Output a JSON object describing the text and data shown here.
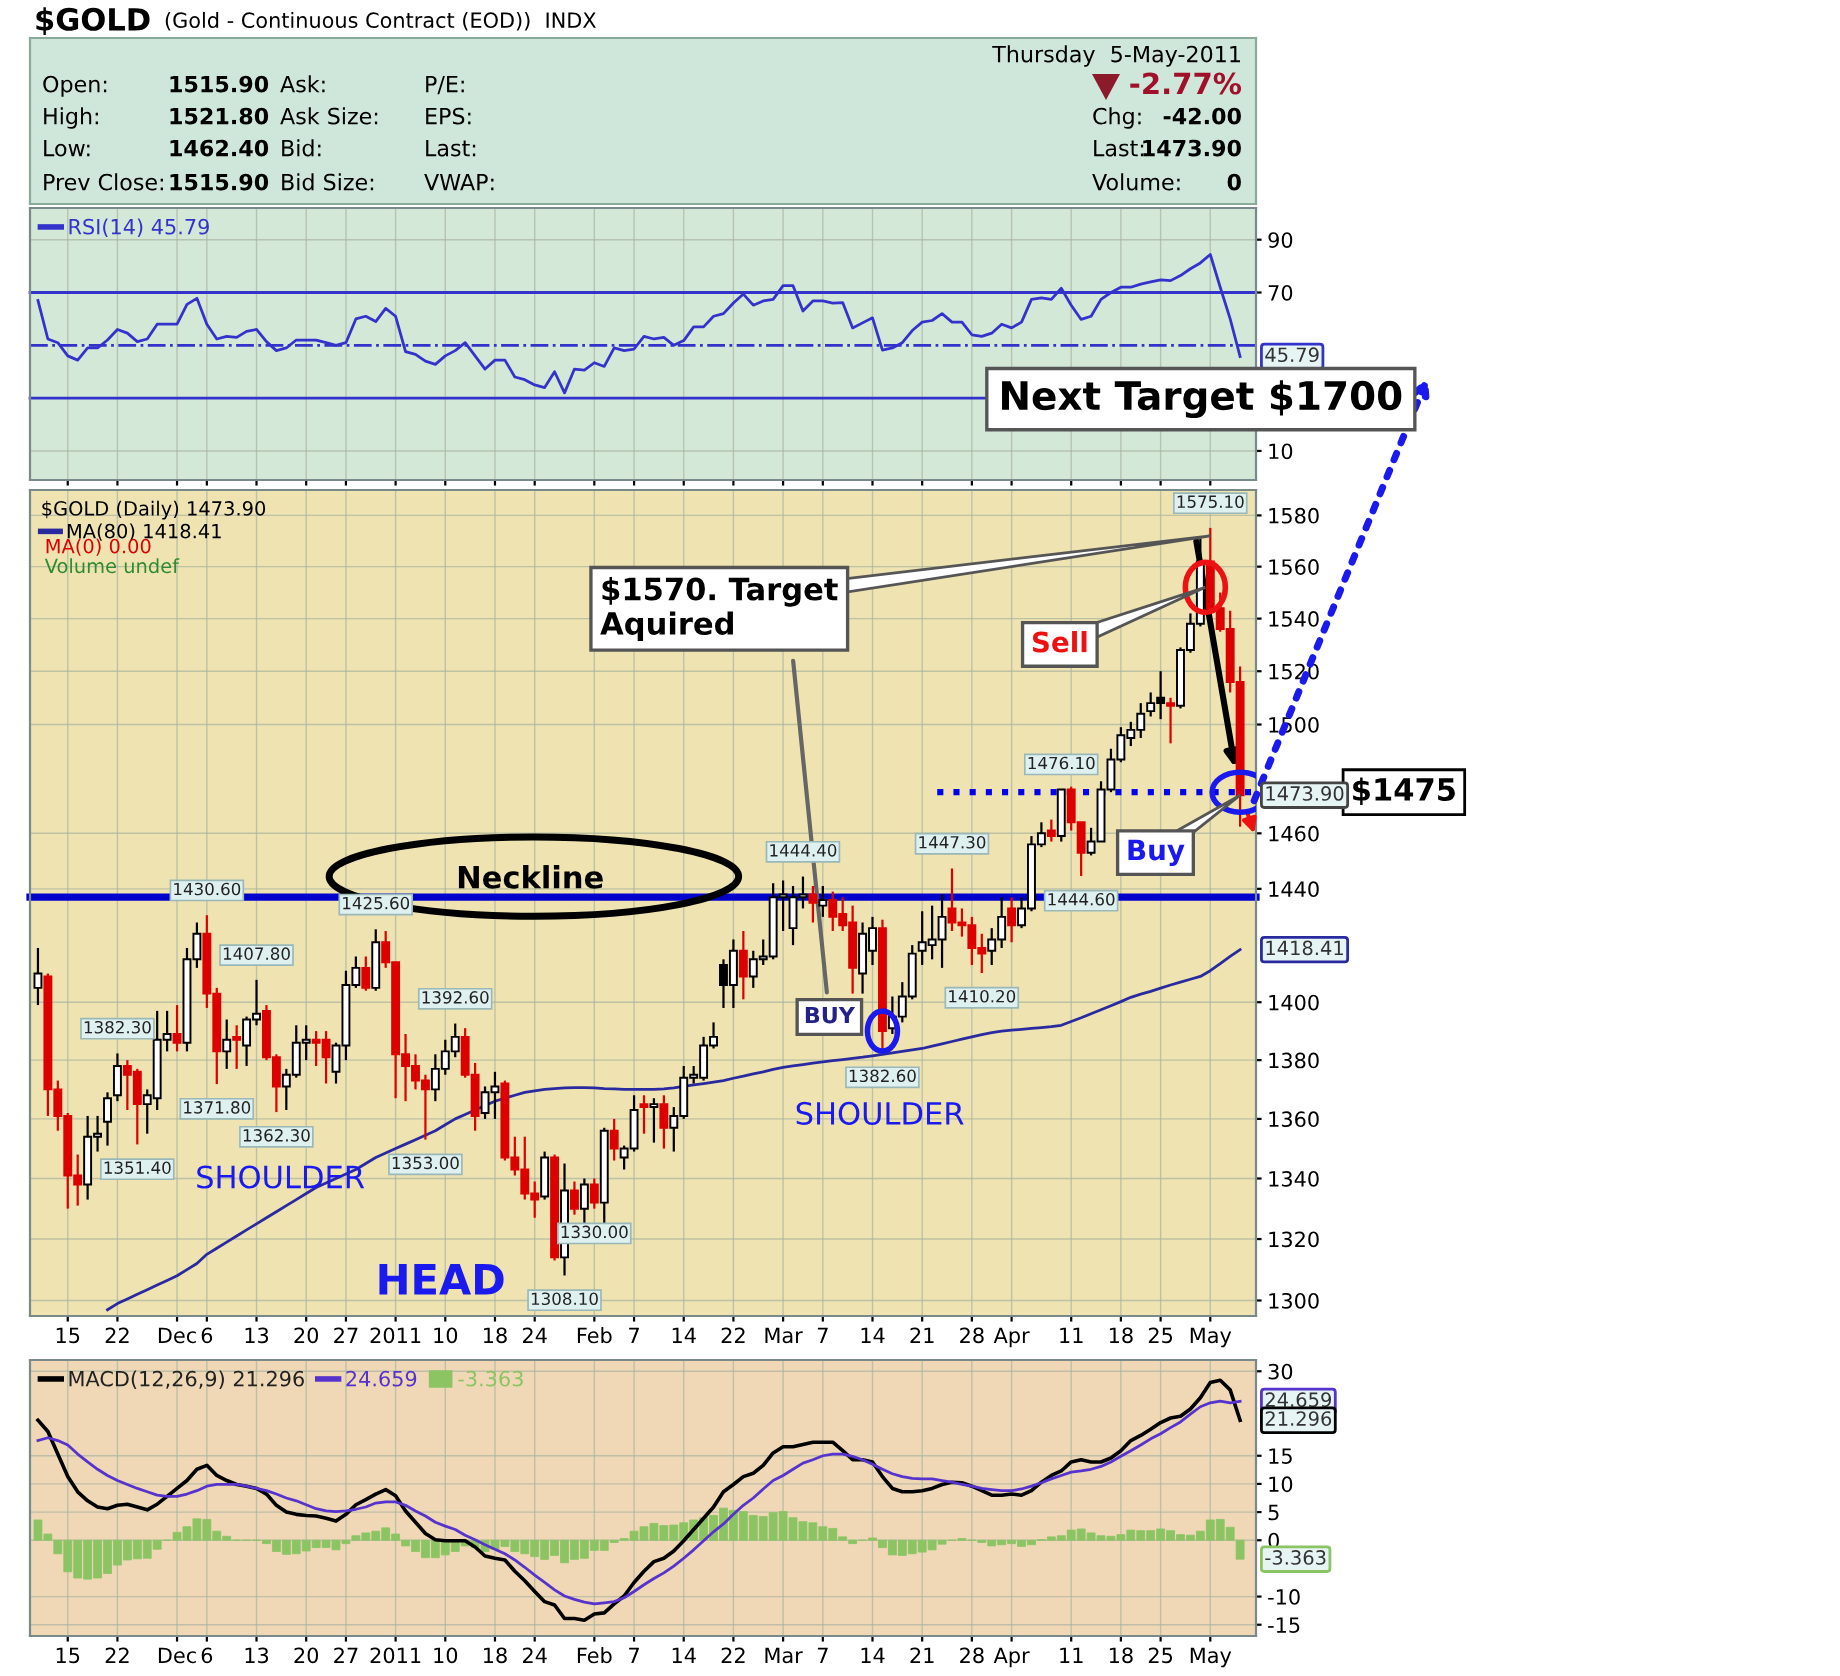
{
  "chart_data": [
    {
      "type": "other",
      "title": "$GOLD",
      "subtitle": "(Gold - Continuous Contract (EOD))  INDX",
      "annotations": [
        "Open:",
        "1515.90",
        "High:",
        "1521.80",
        "Low:",
        "1462.40",
        "Prev Close:",
        "1515.90",
        "Ask:",
        "Ask Size:",
        "Bid:",
        "Bid Size:",
        "P/E:",
        "EPS:",
        "Last:",
        "VWAP:",
        "Thursday  5-May-2011",
        "-2.77%",
        "Chg:",
        "-42.00",
        "Last:",
        "1473.90",
        "Volume:",
        "0"
      ]
    },
    {
      "type": "line",
      "categories": [
        null,
        null,
        null,
        null,
        null,
        null,
        null,
        null,
        null,
        null,
        null,
        null,
        null,
        null,
        null,
        null,
        null,
        null,
        null,
        null,
        null,
        null,
        null,
        null,
        null,
        null,
        null,
        null,
        null,
        null,
        null,
        null,
        null,
        null,
        null,
        null,
        null,
        null,
        null,
        null,
        null,
        null,
        null,
        null,
        null,
        null,
        null,
        null,
        null,
        null,
        null,
        null,
        null,
        null,
        null,
        null,
        null,
        null,
        null,
        null,
        null,
        null,
        null,
        null,
        null,
        null,
        null,
        null,
        null,
        null,
        null,
        null,
        null,
        null,
        null,
        null,
        null,
        null,
        null,
        null,
        null,
        null,
        null,
        null,
        null,
        null,
        null,
        null,
        null,
        null,
        null,
        null,
        null,
        null,
        null,
        null,
        null,
        null,
        null,
        null,
        null,
        null,
        null,
        null,
        null,
        null,
        null,
        null,
        null,
        null,
        null,
        null,
        null,
        null,
        null,
        null,
        null,
        null,
        null,
        null,
        null,
        null
      ],
      "series": [
        {
          "name": "RSI(14) 45.79",
          "color": "#3333cc",
          "values": [
            67,
            52.4,
            51,
            46,
            44.4,
            49,
            49,
            52,
            56,
            54.6,
            51.4,
            52.4,
            58,
            58,
            58,
            65.5,
            67.8,
            58,
            52.4,
            53.4,
            53,
            55.3,
            56,
            51.4,
            48,
            49,
            52,
            52,
            52,
            51,
            50,
            51,
            60,
            61,
            59,
            64,
            61,
            47.6,
            46.6,
            44,
            42.8,
            46,
            48,
            51,
            46,
            41,
            44.4,
            44.4,
            38,
            37,
            35,
            34,
            40,
            32,
            41,
            40.6,
            43.4,
            42,
            49,
            48,
            48.6,
            53.4,
            52.4,
            53,
            50,
            51.8,
            57,
            57,
            61,
            62,
            66,
            69.4,
            65.2,
            66.8,
            67.4,
            72.6,
            72.6,
            63,
            66.8,
            66.8,
            66,
            66.2,
            56.6,
            58.5,
            60.4,
            48.2,
            49,
            51,
            55.6,
            58.8,
            59.4,
            62,
            58.8,
            58.8,
            54,
            53.4,
            54.6,
            58,
            56.6,
            58.8,
            67.4,
            68,
            67.4,
            71.6,
            65.2,
            59.8,
            61,
            67.4,
            70,
            72,
            72,
            73.2,
            74,
            74.8,
            74.5,
            76.4,
            79,
            81.2,
            84.4,
            72,
            60,
            45.79
          ]
        }
      ],
      "ylim": [
        -1,
        102
      ],
      "yticks": [
        10,
        70,
        90
      ],
      "tick_labels": "y",
      "grid": true,
      "legend": "top left",
      "ref_lines": [
        {
          "axis": "y",
          "value": 70,
          "color": "#3333cc",
          "line_style": "solid"
        },
        {
          "axis": "y",
          "value": 50,
          "color": "#3333cc",
          "line_style": "dashdot"
        },
        {
          "axis": "y",
          "value": 30,
          "color": "#3333cc",
          "line_style": "solid"
        }
      ],
      "annotations": [
        {
          "text": "45.79",
          "y": 45.79
        }
      ]
    },
    {
      "type": "candlestick",
      "categories": [
        null,
        null,
        null,
        "15",
        null,
        null,
        null,
        null,
        "22",
        null,
        null,
        null,
        null,
        null,
        "Dec",
        null,
        null,
        "6",
        null,
        null,
        null,
        null,
        "13",
        null,
        null,
        null,
        null,
        "20",
        null,
        null,
        null,
        "27",
        null,
        null,
        null,
        null,
        "2011",
        null,
        null,
        null,
        null,
        "10",
        null,
        null,
        null,
        null,
        "18",
        null,
        null,
        null,
        "24",
        null,
        null,
        null,
        null,
        null,
        "Feb",
        null,
        null,
        null,
        "7",
        null,
        null,
        null,
        null,
        "14",
        null,
        null,
        null,
        null,
        "22",
        null,
        null,
        null,
        null,
        "Mar",
        null,
        null,
        null,
        "7",
        null,
        null,
        null,
        null,
        "14",
        null,
        null,
        null,
        null,
        "21",
        null,
        null,
        null,
        null,
        "28",
        null,
        null,
        null,
        "Apr",
        null,
        null,
        null,
        null,
        null,
        "11",
        null,
        null,
        null,
        null,
        "18",
        null,
        null,
        null,
        "25",
        null,
        null,
        null,
        null,
        "May",
        null,
        null,
        null
      ],
      "ohlc": [
        [
          1405,
          1419,
          1399,
          1410
        ],
        [
          1409,
          1410,
          1361,
          1370
        ],
        [
          1370,
          1373,
          1356,
          1361
        ],
        [
          1361,
          1362,
          1330,
          1341
        ],
        [
          1341,
          1348,
          1331,
          1338
        ],
        [
          1338,
          1361,
          1333,
          1354
        ],
        [
          1354,
          1361,
          1349,
          1355
        ],
        [
          1359,
          1369,
          1351,
          1367
        ],
        [
          1368,
          1382.3,
          1366,
          1378
        ],
        [
          1378,
          1380,
          1363,
          1375
        ],
        [
          1376,
          1377,
          1351.4,
          1365
        ],
        [
          1365,
          1370,
          1355,
          1368
        ],
        [
          1367,
          1397,
          1363,
          1387
        ],
        [
          1387,
          1397,
          1383,
          1389
        ],
        [
          1389,
          1399,
          1383,
          1386
        ],
        [
          1386,
          1419,
          1383,
          1415
        ],
        [
          1415,
          1428,
          1412,
          1424
        ],
        [
          1424,
          1430.6,
          1398,
          1403
        ],
        [
          1403,
          1405,
          1371.8,
          1383
        ],
        [
          1383,
          1394,
          1377,
          1387
        ],
        [
          1388,
          1392,
          1377,
          1387
        ],
        [
          1385,
          1395,
          1378,
          1394
        ],
        [
          1394,
          1407.8,
          1392,
          1396
        ],
        [
          1397,
          1399,
          1380,
          1381
        ],
        [
          1381,
          1382,
          1362.3,
          1371
        ],
        [
          1371,
          1377,
          1363,
          1375
        ],
        [
          1375,
          1392,
          1374,
          1386
        ],
        [
          1386,
          1392,
          1380,
          1387
        ],
        [
          1387,
          1390,
          1378,
          1386
        ],
        [
          1387,
          1390,
          1372,
          1381
        ],
        [
          1376,
          1386,
          1372,
          1385
        ],
        [
          1385,
          1411,
          1380,
          1406
        ],
        [
          1406,
          1416,
          1405,
          1412
        ],
        [
          1412,
          1416,
          1404,
          1405
        ],
        [
          1405,
          1425.6,
          1404,
          1421
        ],
        [
          1421,
          1425,
          1412,
          1414
        ],
        [
          1414,
          1414,
          1367,
          1382
        ],
        [
          1382,
          1389,
          1366,
          1378
        ],
        [
          1378,
          1382,
          1370,
          1373
        ],
        [
          1373,
          1375,
          1353,
          1370
        ],
        [
          1370,
          1382,
          1366,
          1377
        ],
        [
          1377,
          1387,
          1375,
          1383
        ],
        [
          1383,
          1392.6,
          1381,
          1388
        ],
        [
          1388,
          1391,
          1374,
          1375
        ],
        [
          1375,
          1379,
          1356,
          1361
        ],
        [
          1362,
          1371,
          1360,
          1369
        ],
        [
          1369,
          1376,
          1360,
          1371
        ],
        [
          1372,
          1373,
          1346,
          1347
        ],
        [
          1347,
          1354,
          1341,
          1343
        ],
        [
          1343,
          1354,
          1333,
          1335
        ],
        [
          1335,
          1339,
          1327,
          1333
        ],
        [
          1334,
          1349,
          1333,
          1347
        ],
        [
          1347,
          1348,
          1313,
          1314
        ],
        [
          1314,
          1345,
          1308.1,
          1336
        ],
        [
          1336,
          1339,
          1328,
          1330
        ],
        [
          1330,
          1340,
          1324,
          1338
        ],
        [
          1338,
          1340,
          1330,
          1332
        ],
        [
          1332,
          1357,
          1324,
          1356
        ],
        [
          1356,
          1360,
          1346,
          1350
        ],
        [
          1347,
          1351,
          1343,
          1350
        ],
        [
          1350,
          1368,
          1349,
          1363
        ],
        [
          1365,
          1368,
          1355,
          1364
        ],
        [
          1364,
          1367,
          1352,
          1365
        ],
        [
          1365,
          1368,
          1350,
          1357
        ],
        [
          1357,
          1364,
          1349,
          1361
        ],
        [
          1361,
          1378,
          1360,
          1374
        ],
        [
          1374,
          1378,
          1372,
          1375
        ],
        [
          1374,
          1388,
          1373,
          1385
        ],
        [
          1385,
          1393,
          1384,
          1388
        ],
        [
          1413,
          1415,
          1398,
          1406
        ],
        [
          1406,
          1422,
          1398,
          1418
        ],
        [
          1418,
          1425,
          1401,
          1409
        ],
        [
          1409,
          1418,
          1405,
          1415
        ],
        [
          1415,
          1422,
          1413,
          1416
        ],
        [
          1416,
          1442,
          1415,
          1437
        ],
        [
          1437,
          1443,
          1425,
          1438
        ],
        [
          1426,
          1441,
          1420,
          1437
        ],
        [
          1437,
          1444.4,
          1433,
          1438
        ],
        [
          1438,
          1441,
          1428,
          1435
        ],
        [
          1434,
          1441,
          1430,
          1436
        ],
        [
          1436,
          1439,
          1425,
          1430
        ],
        [
          1431,
          1437,
          1425,
          1427
        ],
        [
          1428,
          1434,
          1403,
          1412
        ],
        [
          1410,
          1428,
          1403,
          1424
        ],
        [
          1418,
          1430,
          1413,
          1426
        ],
        [
          1426,
          1429,
          1382.6,
          1390
        ],
        [
          1391,
          1402,
          1389,
          1395
        ],
        [
          1395,
          1407,
          1393,
          1402
        ],
        [
          1402,
          1420,
          1401,
          1417
        ],
        [
          1418,
          1432,
          1413,
          1421
        ],
        [
          1420,
          1434,
          1415,
          1422
        ],
        [
          1422,
          1438,
          1412,
          1430
        ],
        [
          1433,
          1447.3,
          1425,
          1428
        ],
        [
          1428,
          1433,
          1423,
          1427
        ],
        [
          1427,
          1430,
          1413,
          1419
        ],
        [
          1419,
          1424,
          1410.2,
          1417
        ],
        [
          1418,
          1426,
          1413,
          1422
        ],
        [
          1422,
          1437,
          1419,
          1430
        ],
        [
          1433,
          1437,
          1421,
          1427
        ],
        [
          1427,
          1437,
          1426,
          1433
        ],
        [
          1433,
          1459,
          1432,
          1456
        ],
        [
          1456,
          1464,
          1455,
          1460
        ],
        [
          1461,
          1465,
          1457,
          1459
        ],
        [
          1459,
          1476.1,
          1457,
          1476
        ],
        [
          1476,
          1477,
          1461,
          1464
        ],
        [
          1464,
          1464,
          1444.6,
          1453
        ],
        [
          1453,
          1462,
          1452,
          1457
        ],
        [
          1457,
          1479,
          1457,
          1476
        ],
        [
          1476,
          1491,
          1475,
          1487
        ],
        [
          1487,
          1499,
          1486,
          1496
        ],
        [
          1495,
          1501,
          1492,
          1498
        ],
        [
          1498,
          1508,
          1495,
          1504
        ],
        [
          1505,
          1512,
          1503,
          1508
        ],
        [
          1510,
          1520,
          1502,
          1508
        ],
        [
          1508,
          1510,
          1493,
          1507
        ],
        [
          1507,
          1529,
          1506,
          1528
        ],
        [
          1528,
          1542,
          1527,
          1538
        ],
        [
          1538,
          1571,
          1537,
          1562
        ],
        [
          1562,
          1575.1,
          1541,
          1544
        ],
        [
          1544,
          1550,
          1535,
          1536
        ],
        [
          1536,
          1543,
          1512,
          1515.9
        ],
        [
          1515.9,
          1521.8,
          1462.4,
          1473.9
        ]
      ],
      "colors": [
        "#ffffff",
        "#dd0000",
        "#dd0000",
        "#dd0000",
        "#dd0000",
        "#ffffff",
        "#ffffff",
        "#ffffff",
        "#ffffff",
        "#dd0000",
        "#dd0000",
        "#ffffff",
        "#ffffff",
        "#ffffff",
        "#dd0000",
        "#ffffff",
        "#ffffff",
        "#dd0000",
        "#dd0000",
        "#ffffff",
        "#dd0000",
        "#ffffff",
        "#ffffff",
        "#dd0000",
        "#dd0000",
        "#ffffff",
        "#ffffff",
        "#ffffff",
        "#dd0000",
        "#dd0000",
        "#ffffff",
        "#ffffff",
        "#ffffff",
        "#dd0000",
        "#ffffff",
        "#dd0000",
        "#dd0000",
        "#dd0000",
        "#dd0000",
        "#dd0000",
        "#ffffff",
        "#ffffff",
        "#ffffff",
        "#dd0000",
        "#dd0000",
        "#ffffff",
        "#ffffff",
        "#dd0000",
        "#dd0000",
        "#dd0000",
        "#dd0000",
        "#ffffff",
        "#dd0000",
        "#ffffff",
        "#dd0000",
        "#ffffff",
        "#dd0000",
        "#ffffff",
        "#dd0000",
        "#ffffff",
        "#ffffff",
        "#dd0000",
        "#ffffff",
        "#dd0000",
        "#ffffff",
        "#ffffff",
        "#ffffff",
        "#ffffff",
        "#ffffff",
        "#000000",
        "#ffffff",
        "#dd0000",
        "#ffffff",
        "#ffffff",
        "#ffffff",
        "#ffffff",
        "#ffffff",
        "#ffffff",
        "#dd0000",
        "#ffffff",
        "#dd0000",
        "#dd0000",
        "#dd0000",
        "#ffffff",
        "#ffffff",
        "#dd0000",
        "#ffffff",
        "#ffffff",
        "#ffffff",
        "#ffffff",
        "#ffffff",
        "#ffffff",
        "#dd0000",
        "#dd0000",
        "#dd0000",
        "#dd0000",
        "#ffffff",
        "#ffffff",
        "#dd0000",
        "#ffffff",
        "#ffffff",
        "#ffffff",
        "#dd0000",
        "#ffffff",
        "#dd0000",
        "#dd0000",
        "#ffffff",
        "#ffffff",
        "#ffffff",
        "#ffffff",
        "#ffffff",
        "#ffffff",
        "#ffffff",
        "#000000",
        "#dd0000",
        "#ffffff",
        "#ffffff",
        "#ffffff",
        "#dd0000",
        "#dd0000",
        "#dd0000",
        "#dd0000"
      ],
      "series": [
        {
          "name": "MA(80) 1418.41",
          "type": "line",
          "color": "#2a2aa0",
          "values": [
            null,
            null,
            null,
            null,
            null,
            null,
            null,
            1297,
            1299,
            1300.5,
            1302,
            1303.5,
            1305,
            1306.5,
            1308,
            1310,
            1312,
            1315,
            1317,
            1319,
            1321,
            1323,
            1325,
            1327,
            1329,
            1331,
            1333,
            1335,
            1337,
            1338.5,
            1340,
            1341.5,
            1343,
            1345,
            1347,
            1348.5,
            1350,
            1351.5,
            1353,
            1354.5,
            1356,
            1358,
            1360,
            1361.5,
            1363,
            1364.5,
            1366,
            1367,
            1368,
            1369,
            1369.5,
            1370,
            1370.3,
            1370.5,
            1370.6,
            1370.6,
            1370.5,
            1370.3,
            1370.2,
            1370,
            1370,
            1370,
            1370,
            1370.2,
            1370.5,
            1371,
            1371.5,
            1372,
            1372.5,
            1373,
            1373.8,
            1374.5,
            1375.3,
            1376,
            1376.8,
            1377.5,
            1378,
            1378.5,
            1379,
            1379.4,
            1379.8,
            1380.2,
            1380.6,
            1381,
            1381.5,
            1382,
            1382.5,
            1383,
            1383.5,
            1384,
            1384.8,
            1385.6,
            1386.4,
            1387.2,
            1388,
            1388.8,
            1389.5,
            1390,
            1390.3,
            1390.6,
            1390.9,
            1391.2,
            1391.5,
            1392,
            1393.3,
            1394.6,
            1396,
            1397.4,
            1398.8,
            1400.2,
            1401.7,
            1402.8,
            1403.8,
            1404.9,
            1406,
            1407,
            1408,
            1409,
            1411,
            1413.5,
            1416,
            1418.41
          ]
        }
      ],
      "legend_title": "$GOLD (Daily) 1473.90",
      "legend": "top left",
      "log": "y",
      "ylim": [
        1295,
        1590
      ],
      "yticks": [
        1300,
        1320,
        1340,
        1360,
        1380,
        1400,
        1440,
        1460,
        1500,
        1520,
        1540,
        1560,
        1580
      ],
      "grid": true,
      "ref_lines": [
        {
          "axis": "y",
          "value": 1437,
          "color": "#0000cc",
          "line_style": "solid"
        },
        {
          "axis": "y",
          "value": 1475,
          "label": "$1475",
          "color": "#0000ee",
          "line_style": "dotted"
        }
      ],
      "annotations": [
        "MA(0) 0.00",
        "Volume undef",
        "Neckline",
        "SHOULDER",
        "HEAD",
        "SHOULDER",
        "$1570. Target\nAquired",
        "Sell",
        "Buy",
        "BUY",
        "Next Target $1700",
        "1473.90",
        "1418.41",
        {
          "text": "1330.00",
          "y": 1330
        },
        {
          "text": "1382.30",
          "y": 1382.3
        },
        {
          "text": "1351.40",
          "y": 1351.4
        },
        {
          "text": "1430.60",
          "y": 1430.6
        },
        {
          "text": "1371.80",
          "y": 1371.8
        },
        {
          "text": "1407.80",
          "y": 1407.8
        },
        {
          "text": "1362.30",
          "y": 1362.3
        },
        {
          "text": "1425.60",
          "y": 1425.6
        },
        {
          "text": "1353.00",
          "y": 1353
        },
        {
          "text": "1392.60",
          "y": 1392.6
        },
        {
          "text": "1308.10",
          "y": 1308.1
        },
        {
          "text": "1444.40",
          "y": 1444.4
        },
        {
          "text": "1382.60",
          "y": 1382.6
        },
        {
          "text": "1447.30",
          "y": 1447.3
        },
        {
          "text": "1410.20",
          "y": 1410.2
        },
        {
          "text": "1476.10",
          "y": 1476.1
        },
        {
          "text": "1444.60",
          "y": 1444.6
        },
        {
          "text": "1575.10",
          "y": 1575.1
        }
      ]
    },
    {
      "type": "line",
      "categories": [
        null,
        null,
        null,
        "15",
        null,
        null,
        null,
        null,
        "22",
        null,
        null,
        null,
        null,
        null,
        "Dec",
        null,
        null,
        "6",
        null,
        null,
        null,
        null,
        "13",
        null,
        null,
        null,
        null,
        "20",
        null,
        null,
        null,
        "27",
        null,
        null,
        null,
        null,
        "2011",
        null,
        null,
        null,
        null,
        "10",
        null,
        null,
        null,
        null,
        "18",
        null,
        null,
        null,
        "24",
        null,
        null,
        null,
        null,
        null,
        "Feb",
        null,
        null,
        null,
        "7",
        null,
        null,
        null,
        null,
        "14",
        null,
        null,
        null,
        null,
        "22",
        null,
        null,
        null,
        null,
        "Mar",
        null,
        null,
        null,
        "7",
        null,
        null,
        null,
        null,
        "14",
        null,
        null,
        null,
        null,
        "21",
        null,
        null,
        null,
        null,
        "28",
        null,
        null,
        null,
        "Apr",
        null,
        null,
        null,
        null,
        null,
        "11",
        null,
        null,
        null,
        null,
        "18",
        null,
        null,
        null,
        "25",
        null,
        null,
        null,
        null,
        "May",
        null,
        null,
        null
      ],
      "series": [
        {
          "name": "MACD(12,26,9) 21.296",
          "color": "#000000",
          "values": [
            21.3,
            19.3,
            15.3,
            11.3,
            8.6,
            7,
            5.9,
            5.6,
            6.2,
            6.4,
            5.9,
            5.4,
            6.4,
            7.8,
            9.2,
            10.6,
            12.6,
            13.3,
            11.5,
            10.6,
            9.9,
            9.6,
            9.2,
            8.2,
            6.2,
            5,
            4.6,
            4.4,
            4.3,
            3.9,
            3.4,
            4.6,
            6.3,
            7.2,
            8.2,
            9,
            7.9,
            5.2,
            3.2,
            1.2,
            0.1,
            -0.1,
            -0.1,
            -0.1,
            -1.2,
            -2.8,
            -3.2,
            -3.5,
            -5.5,
            -7.2,
            -9.1,
            -10.9,
            -11.5,
            -13.9,
            -13.9,
            -14.2,
            -13.1,
            -12.9,
            -11.3,
            -9.9,
            -7.5,
            -5.5,
            -3.8,
            -3.2,
            -1.9,
            -0.1,
            1.9,
            3.9,
            5.9,
            8.6,
            9.9,
            11.3,
            11.9,
            13.3,
            15.5,
            16.6,
            16.6,
            17,
            17.4,
            17.4,
            17.4,
            15.9,
            14.3,
            14.3,
            13.9,
            11.3,
            9.2,
            8.6,
            8.6,
            8.8,
            9.2,
            9.9,
            10.3,
            10.2,
            9.6,
            8.8,
            8,
            8,
            8.2,
            8,
            8.8,
            10.3,
            11.5,
            12.3,
            13.9,
            14.3,
            13.9,
            13.9,
            14.6,
            15.9,
            17.7,
            18.6,
            19.7,
            20.9,
            21.7,
            22,
            23.3,
            25.3,
            28,
            28.4,
            26.7,
            21.296
          ]
        },
        {
          "name": "24.659",
          "color": "#5533cc",
          "values": [
            17.7,
            18.2,
            17.7,
            16.9,
            15.3,
            13.9,
            12.6,
            11.5,
            10.6,
            9.9,
            9.2,
            8.6,
            8,
            7.8,
            7.8,
            8.2,
            8.8,
            9.6,
            9.9,
            9.9,
            9.9,
            9.6,
            9.2,
            8.8,
            8.2,
            7.5,
            7,
            6.3,
            5.6,
            5.2,
            5.1,
            5.2,
            5.5,
            5.9,
            6.6,
            6.8,
            6.8,
            6.2,
            5.2,
            4.3,
            3.2,
            2.5,
            1.9,
            0.9,
            0.1,
            -0.8,
            -1.6,
            -2.4,
            -3.5,
            -4.8,
            -6.2,
            -7.5,
            -8.8,
            -9.9,
            -10.5,
            -11,
            -11.3,
            -11.1,
            -10.9,
            -10.2,
            -9.1,
            -7.9,
            -6.8,
            -5.8,
            -4.6,
            -3.2,
            -1.7,
            -0.1,
            1.5,
            2.9,
            4.6,
            6.2,
            7.5,
            9.1,
            10.6,
            11.5,
            12.6,
            13.7,
            14.3,
            15,
            15.3,
            15.3,
            14.9,
            14.3,
            13.5,
            12.6,
            11.8,
            11.3,
            11,
            10.9,
            10.9,
            10.6,
            10.3,
            9.9,
            9.6,
            9.2,
            9,
            8.8,
            8.8,
            9.1,
            9.6,
            10.2,
            10.9,
            11.5,
            12.1,
            12.3,
            12.6,
            13.1,
            13.9,
            14.9,
            15.9,
            16.9,
            18,
            18.9,
            20,
            21,
            22.4,
            23.7,
            24.4,
            24.7,
            24.4,
            24.659
          ]
        },
        {
          "name": "-3.363",
          "type": "bar",
          "color": "#8cc464",
          "values": [
            3.6,
            1.1,
            -2.4,
            -5.6,
            -6.7,
            -6.9,
            -6.7,
            -5.9,
            -4.4,
            -3.5,
            -3.3,
            -3.2,
            -1.6,
            0,
            1.4,
            2.4,
            3.8,
            3.7,
            1.6,
            0.7,
            0,
            0,
            0,
            -0.6,
            -2,
            -2.5,
            -2.4,
            -1.9,
            -1.3,
            -1.3,
            -1.7,
            -0.6,
            0.8,
            1.3,
            1.6,
            2.2,
            1.1,
            -1,
            -2,
            -3.1,
            -3.1,
            -2.6,
            -2,
            -1,
            -1.3,
            -2,
            -1.6,
            -1.1,
            -2,
            -2.4,
            -2.9,
            -3.4,
            -2.7,
            -4,
            -3.4,
            -3.2,
            -1.8,
            -1.8,
            -0.4,
            0.3,
            1.6,
            2.4,
            3,
            2.6,
            2.7,
            3.1,
            3.6,
            4,
            4.4,
            5.7,
            5.3,
            5.1,
            4.4,
            4.2,
            4.9,
            5.1,
            4,
            3.3,
            3.1,
            2.4,
            2.1,
            0.6,
            -0.6,
            0,
            0.4,
            -1.3,
            -2.6,
            -2.7,
            -2.4,
            -2.1,
            -1.7,
            -0.7,
            0,
            0.3,
            0,
            -0.4,
            -1,
            -0.8,
            -0.6,
            -1.1,
            -0.8,
            0.1,
            0.6,
            0.8,
            1.8,
            2,
            1.3,
            0.8,
            0.7,
            1,
            1.8,
            1.7,
            1.7,
            2,
            1.7,
            1,
            0.9,
            1.6,
            3.6,
            3.7,
            2.3,
            -3.363
          ]
        }
      ],
      "ylim": [
        -17,
        32
      ],
      "yticks": [
        -15,
        -10,
        0,
        5,
        10,
        15,
        30
      ],
      "grid": true,
      "legend": "top left",
      "annotations": [
        {
          "text": "24.659",
          "y": 24.659
        },
        {
          "text": "21.296",
          "y": 21.296
        },
        {
          "text": "-3.363",
          "y": -3.363
        }
      ]
    }
  ]
}
